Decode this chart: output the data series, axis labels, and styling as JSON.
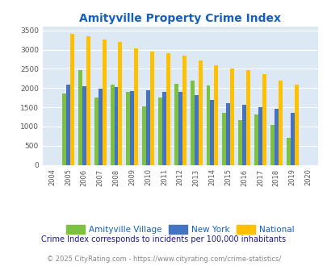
{
  "title": "Amityville Property Crime Index",
  "years": [
    2004,
    2005,
    2006,
    2007,
    2008,
    2009,
    2010,
    2011,
    2012,
    2013,
    2014,
    2015,
    2016,
    2017,
    2018,
    2019,
    2020
  ],
  "amityville": [
    null,
    1850,
    2460,
    1760,
    2080,
    1900,
    1520,
    1760,
    2110,
    2200,
    2060,
    1360,
    1170,
    1320,
    1040,
    710,
    null
  ],
  "new_york": [
    null,
    2090,
    2040,
    1990,
    2020,
    1930,
    1940,
    1910,
    1910,
    1810,
    1700,
    1600,
    1560,
    1500,
    1450,
    1360,
    null
  ],
  "national": [
    null,
    3420,
    3340,
    3270,
    3210,
    3040,
    2950,
    2900,
    2850,
    2720,
    2590,
    2500,
    2470,
    2370,
    2200,
    2100,
    null
  ],
  "bar_width": 0.25,
  "color_amityville": "#7dc142",
  "color_new_york": "#4472c4",
  "color_national": "#ffc000",
  "background_color": "#dce9f5",
  "ylim": [
    0,
    3600
  ],
  "yticks": [
    0,
    500,
    1000,
    1500,
    2000,
    2500,
    3000,
    3500
  ],
  "legend_labels": [
    "Amityville Village",
    "New York",
    "National"
  ],
  "footnote1": "Crime Index corresponds to incidents per 100,000 inhabitants",
  "footnote2": "© 2025 CityRating.com - https://www.cityrating.com/crime-statistics/",
  "title_color": "#1560bd",
  "footnote1_color": "#1a1a8c",
  "footnote2_color": "#888888",
  "legend_text_color": "#1560bd"
}
